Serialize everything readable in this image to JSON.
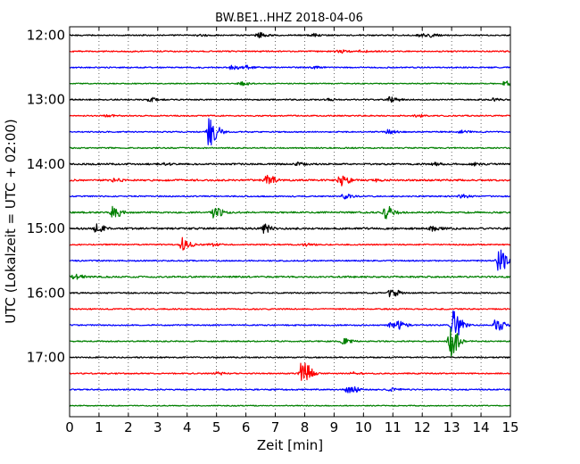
{
  "chart_data": {
    "type": "line",
    "title": "BW.BE1..HHZ 2018-04-06",
    "xlabel": "Zeit  [min]",
    "ylabel": "UTC (Lokalzeit = UTC + 02:00)",
    "xlim": [
      0,
      15
    ],
    "xticks": [
      0,
      1,
      2,
      3,
      4,
      5,
      6,
      7,
      8,
      9,
      10,
      11,
      12,
      13,
      14,
      15
    ],
    "y_tick_labels": [
      "12:00",
      "13:00",
      "14:00",
      "15:00",
      "16:00",
      "17:00"
    ],
    "grid": "vertical dotted",
    "colors": [
      "#000000",
      "#ff0000",
      "#0000ff",
      "#008000"
    ],
    "traces": [
      {
        "start": "12:00",
        "color": "#000000",
        "noise": 1.0,
        "events": [
          [
            4.4,
            1.5
          ],
          [
            6.4,
            4.5
          ],
          [
            8.3,
            2
          ],
          [
            11.9,
            2
          ],
          [
            12.3,
            2
          ]
        ]
      },
      {
        "start": "12:15",
        "color": "#ff0000",
        "noise": 1.0,
        "events": [
          [
            9.1,
            3
          ],
          [
            9.9,
            1.5
          ]
        ]
      },
      {
        "start": "12:30",
        "color": "#0000ff",
        "noise": 1.0,
        "events": [
          [
            5.5,
            3.5
          ],
          [
            6.0,
            2.5
          ],
          [
            8.3,
            1.5
          ]
        ]
      },
      {
        "start": "12:45",
        "color": "#008000",
        "noise": 0.8,
        "events": [
          [
            5.8,
            3
          ],
          [
            14.8,
            5
          ]
        ]
      },
      {
        "start": "13:00",
        "color": "#000000",
        "noise": 1.0,
        "events": [
          [
            2.7,
            3
          ],
          [
            8.8,
            1.5
          ],
          [
            10.9,
            4
          ],
          [
            14.4,
            2
          ]
        ]
      },
      {
        "start": "13:15",
        "color": "#ff0000",
        "noise": 1.0,
        "events": [
          [
            1.2,
            1.5
          ],
          [
            11.8,
            2
          ]
        ]
      },
      {
        "start": "13:30",
        "color": "#0000ff",
        "noise": 1.0,
        "events": [
          [
            4.75,
            26
          ],
          [
            10.8,
            3
          ],
          [
            13.3,
            2
          ]
        ]
      },
      {
        "start": "13:45",
        "color": "#008000",
        "noise": 1.0,
        "events": []
      },
      {
        "start": "14:00",
        "color": "#000000",
        "noise": 1.3,
        "events": [
          [
            3.1,
            2
          ],
          [
            7.7,
            2
          ],
          [
            12.3,
            2
          ],
          [
            13.7,
            2
          ]
        ]
      },
      {
        "start": "14:15",
        "color": "#ff0000",
        "noise": 1.4,
        "events": [
          [
            1.5,
            2
          ],
          [
            6.7,
            8
          ],
          [
            9.2,
            9
          ],
          [
            10.3,
            2
          ]
        ]
      },
      {
        "start": "14:30",
        "color": "#0000ff",
        "noise": 1.0,
        "events": [
          [
            9.3,
            4
          ],
          [
            13.3,
            3
          ]
        ]
      },
      {
        "start": "14:45",
        "color": "#008000",
        "noise": 1.3,
        "events": [
          [
            1.45,
            10
          ],
          [
            4.9,
            8
          ],
          [
            10.75,
            10
          ]
        ]
      },
      {
        "start": "15:00",
        "color": "#000000",
        "noise": 1.5,
        "events": [
          [
            0.9,
            6
          ],
          [
            6.6,
            6
          ],
          [
            12.3,
            3
          ]
        ]
      },
      {
        "start": "15:15",
        "color": "#ff0000",
        "noise": 1.0,
        "events": [
          [
            3.8,
            12
          ],
          [
            4.8,
            2
          ],
          [
            8.0,
            2
          ]
        ]
      },
      {
        "start": "15:30",
        "color": "#0000ff",
        "noise": 1.0,
        "events": [
          [
            14.6,
            18
          ]
        ]
      },
      {
        "start": "15:45",
        "color": "#008000",
        "noise": 1.3,
        "events": [
          [
            0.15,
            4
          ]
        ]
      },
      {
        "start": "16:00",
        "color": "#000000",
        "noise": 1.0,
        "events": [
          [
            10.9,
            8
          ]
        ]
      },
      {
        "start": "16:15",
        "color": "#ff0000",
        "noise": 1.0,
        "events": []
      },
      {
        "start": "16:30",
        "color": "#0000ff",
        "noise": 1.0,
        "events": [
          [
            10.9,
            4
          ],
          [
            11.2,
            5
          ],
          [
            13.05,
            24
          ],
          [
            14.5,
            10
          ]
        ]
      },
      {
        "start": "16:45",
        "color": "#008000",
        "noise": 1.0,
        "events": [
          [
            9.3,
            4
          ],
          [
            12.95,
            26
          ]
        ]
      },
      {
        "start": "17:00",
        "color": "#000000",
        "noise": 1.0,
        "events": []
      },
      {
        "start": "17:15",
        "color": "#ff0000",
        "noise": 1.0,
        "events": [
          [
            5.0,
            2
          ],
          [
            7.9,
            22
          ],
          [
            9.6,
            2
          ]
        ]
      },
      {
        "start": "17:30",
        "color": "#0000ff",
        "noise": 1.0,
        "events": [
          [
            9.45,
            9
          ],
          [
            10.9,
            2
          ]
        ]
      },
      {
        "start": "17:45",
        "color": "#008000",
        "noise": 0.8,
        "events": []
      }
    ]
  }
}
